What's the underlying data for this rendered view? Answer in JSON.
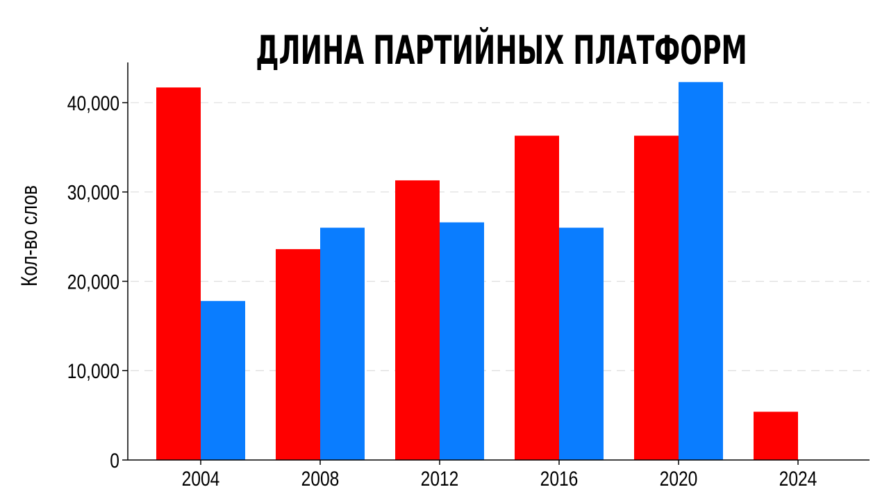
{
  "chart_data": {
    "type": "bar",
    "title": "ДЛИНА ПАРТИЙНЫХ ПЛАТФОРМ",
    "xlabel": "",
    "ylabel": "Кол-во слов",
    "categories": [
      "2004",
      "2008",
      "2012",
      "2016",
      "2020",
      "2024"
    ],
    "series": [
      {
        "color": "#ff0000",
        "values": [
          41700,
          23600,
          31300,
          36300,
          36300,
          5400
        ]
      },
      {
        "color": "#0a7dff",
        "values": [
          17800,
          26000,
          26600,
          26000,
          42300,
          null
        ]
      }
    ],
    "ylim": [
      0,
      44500
    ],
    "yticks": [
      0,
      10000,
      20000,
      30000,
      40000
    ],
    "ytick_labels": [
      "0",
      "10,000",
      "20,000",
      "30,000",
      "40,000"
    ],
    "grid": "horizontal-dashed",
    "legend": "none"
  }
}
